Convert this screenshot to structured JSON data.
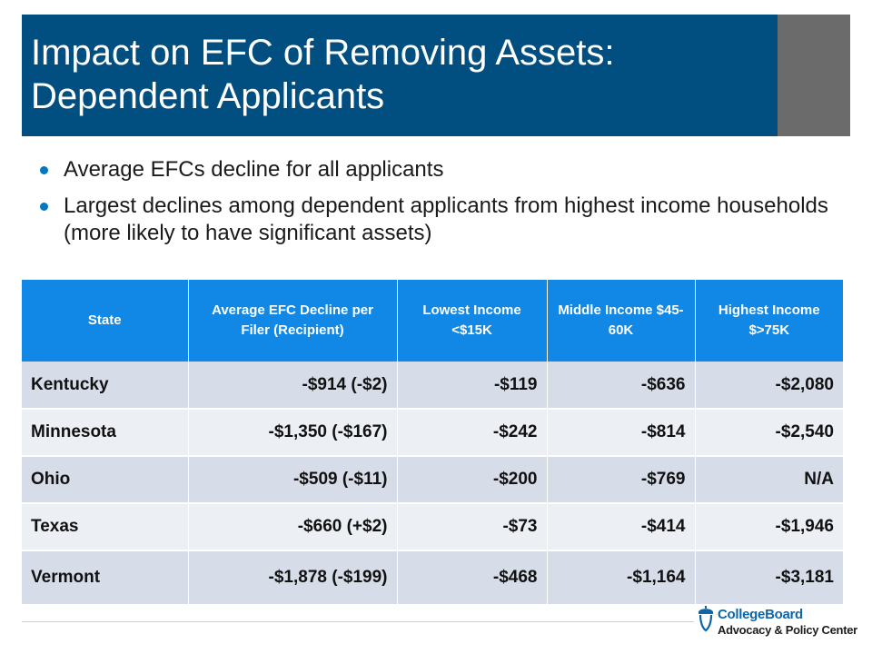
{
  "slide": {
    "title_line1": "Impact on EFC of Removing Assets:",
    "title_line2": "Dependent Applicants",
    "bullets": [
      "Average EFCs decline for all applicants",
      "Largest declines among dependent applicants from highest income households (more likely to have significant assets)"
    ]
  },
  "table": {
    "headers": [
      "State",
      "Average  EFC Decline per Filer (Recipient)",
      "Lowest Income <$15K",
      "Middle Income $45-60K",
      "Highest Income $>75K"
    ],
    "rows": [
      [
        "Kentucky",
        "-$914 (-$2)",
        "-$119",
        "-$636",
        "-$2,080"
      ],
      [
        "Minnesota",
        "-$1,350 (-$167)",
        "-$242",
        "-$814",
        "-$2,540"
      ],
      [
        "Ohio",
        "-$509 (-$11)",
        "-$200",
        "-$769",
        "N/A"
      ],
      [
        "Texas",
        "-$660 (+$2)",
        "-$73",
        "-$414",
        "-$1,946"
      ],
      [
        "Vermont",
        "-$1,878 (-$199)",
        "-$468",
        "-$1,164",
        "-$3,181"
      ]
    ]
  },
  "logo": {
    "name": "CollegeBoard",
    "subtitle": "Advocacy & Policy Center",
    "icon": "acorn-icon"
  },
  "colors": {
    "title_bg": "#004f80",
    "header_bg": "#1188e5",
    "row_odd": "#d6dde8",
    "row_even": "#eceff4",
    "bullet": "#0077c0"
  }
}
